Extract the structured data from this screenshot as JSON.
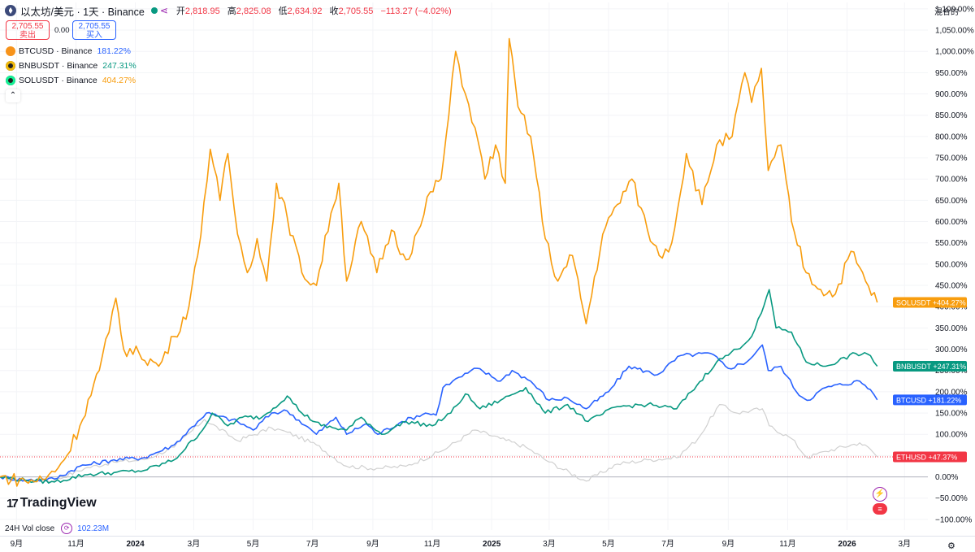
{
  "header": {
    "title": "以太坊/美元 · 1天 · Binance",
    "open_label": "开",
    "open_value": "2,818.95",
    "high_label": "高",
    "high_value": "2,825.08",
    "low_label": "低",
    "low_value": "2,634.92",
    "close_label": "收",
    "close_value": "2,705.55",
    "change": "−113.27 (−4.02%)"
  },
  "trade": {
    "sell_price": "2,705.55",
    "sell_label": "卖出",
    "spread": "0.00",
    "buy_price": "2,705.55",
    "buy_label": "买入"
  },
  "legend": [
    {
      "label": "BTCUSD · Binance",
      "value": "181.22%",
      "color": "#2962ff",
      "coin_color": "#f7931a"
    },
    {
      "label": "BNBUSDT · Binance",
      "value": "247.31%",
      "color": "#089981",
      "coin_color": "#222222"
    },
    {
      "label": "SOLUSDT · Binance",
      "value": "404.27%",
      "color": "#f89d0e",
      "coin_color": "#222222"
    }
  ],
  "scale_mode": "混合的",
  "brand": "TradingView",
  "volume": {
    "label": "24H Vol close",
    "value": "102.23M"
  },
  "chart_data": {
    "type": "line",
    "yunit": "percent",
    "ylim": [
      -125,
      1115
    ],
    "xlim": [
      "2023-08-15",
      "2026-03-25"
    ],
    "yticks": [
      "1,100.00%",
      "1,050.00%",
      "1,000.00%",
      "950.00%",
      "900.00%",
      "850.00%",
      "800.00%",
      "750.00%",
      "700.00%",
      "650.00%",
      "600.00%",
      "550.00%",
      "500.00%",
      "450.00%",
      "400.00%",
      "350.00%",
      "300.00%",
      "250.00%",
      "200.00%",
      "150.00%",
      "100.00%",
      "50.00%",
      "0.00%",
      "−50.00%",
      "−100.00%"
    ],
    "ytick_values": [
      1100,
      1050,
      1000,
      950,
      900,
      850,
      800,
      750,
      700,
      650,
      600,
      550,
      500,
      450,
      400,
      350,
      300,
      250,
      200,
      150,
      100,
      50,
      0,
      -50,
      -100
    ],
    "xticks": [
      {
        "date": "2023-09-01",
        "label": "9月",
        "bold": false
      },
      {
        "date": "2023-11-01",
        "label": "11月",
        "bold": false
      },
      {
        "date": "2024-01-01",
        "label": "2024",
        "bold": true
      },
      {
        "date": "2024-03-01",
        "label": "3月",
        "bold": false
      },
      {
        "date": "2024-05-01",
        "label": "5月",
        "bold": false
      },
      {
        "date": "2024-07-01",
        "label": "7月",
        "bold": false
      },
      {
        "date": "2024-09-01",
        "label": "9月",
        "bold": false
      },
      {
        "date": "2024-11-01",
        "label": "11月",
        "bold": false
      },
      {
        "date": "2025-01-01",
        "label": "2025",
        "bold": true
      },
      {
        "date": "2025-03-01",
        "label": "3月",
        "bold": false
      },
      {
        "date": "2025-05-01",
        "label": "5月",
        "bold": false
      },
      {
        "date": "2025-07-01",
        "label": "7月",
        "bold": false
      },
      {
        "date": "2025-09-01",
        "label": "9月",
        "bold": false
      },
      {
        "date": "2025-11-01",
        "label": "11月",
        "bold": false
      },
      {
        "date": "2026-01-01",
        "label": "2026",
        "bold": true
      },
      {
        "date": "2026-03-01",
        "label": "3月",
        "bold": false
      }
    ],
    "series": [
      {
        "name": "SOLUSDT",
        "color": "#f89d0e",
        "end_label": "SOLUSDT",
        "end_value": "+404.27%",
        "points": [
          [
            "2023-08-15",
            0
          ],
          [
            "2023-09-10",
            -10
          ],
          [
            "2023-10-01",
            -5
          ],
          [
            "2023-10-20",
            40
          ],
          [
            "2023-11-05",
            120
          ],
          [
            "2023-11-25",
            250
          ],
          [
            "2023-12-05",
            340
          ],
          [
            "2023-12-12",
            420
          ],
          [
            "2023-12-20",
            300
          ],
          [
            "2024-01-05",
            290
          ],
          [
            "2024-01-25",
            260
          ],
          [
            "2024-02-10",
            330
          ],
          [
            "2024-02-25",
            400
          ],
          [
            "2024-03-05",
            520
          ],
          [
            "2024-03-18",
            770
          ],
          [
            "2024-03-28",
            650
          ],
          [
            "2024-04-05",
            760
          ],
          [
            "2024-04-15",
            570
          ],
          [
            "2024-04-25",
            480
          ],
          [
            "2024-05-05",
            560
          ],
          [
            "2024-05-15",
            460
          ],
          [
            "2024-05-25",
            690
          ],
          [
            "2024-06-05",
            610
          ],
          [
            "2024-06-20",
            480
          ],
          [
            "2024-07-05",
            450
          ],
          [
            "2024-07-20",
            620
          ],
          [
            "2024-07-28",
            690
          ],
          [
            "2024-08-05",
            460
          ],
          [
            "2024-08-20",
            600
          ],
          [
            "2024-09-05",
            480
          ],
          [
            "2024-09-20",
            580
          ],
          [
            "2024-10-05",
            510
          ],
          [
            "2024-10-20",
            590
          ],
          [
            "2024-10-30",
            670
          ],
          [
            "2024-11-10",
            700
          ],
          [
            "2024-11-18",
            850
          ],
          [
            "2024-11-25",
            1000
          ],
          [
            "2024-12-05",
            900
          ],
          [
            "2024-12-15",
            820
          ],
          [
            "2024-12-25",
            700
          ],
          [
            "2025-01-05",
            780
          ],
          [
            "2025-01-15",
            690
          ],
          [
            "2025-01-19",
            1030
          ],
          [
            "2025-01-28",
            870
          ],
          [
            "2025-02-10",
            800
          ],
          [
            "2025-02-25",
            560
          ],
          [
            "2025-03-10",
            460
          ],
          [
            "2025-03-25",
            520
          ],
          [
            "2025-04-08",
            360
          ],
          [
            "2025-04-25",
            570
          ],
          [
            "2025-05-10",
            640
          ],
          [
            "2025-05-25",
            700
          ],
          [
            "2025-06-10",
            580
          ],
          [
            "2025-06-22",
            520
          ],
          [
            "2025-07-05",
            550
          ],
          [
            "2025-07-20",
            760
          ],
          [
            "2025-08-05",
            640
          ],
          [
            "2025-08-20",
            780
          ],
          [
            "2025-09-05",
            800
          ],
          [
            "2025-09-18",
            950
          ],
          [
            "2025-09-25",
            880
          ],
          [
            "2025-10-05",
            960
          ],
          [
            "2025-10-12",
            720
          ],
          [
            "2025-10-25",
            780
          ],
          [
            "2025-11-05",
            600
          ],
          [
            "2025-11-20",
            480
          ],
          [
            "2025-12-05",
            440
          ],
          [
            "2025-12-20",
            430
          ],
          [
            "2026-01-05",
            530
          ],
          [
            "2026-01-20",
            460
          ],
          [
            "2026-02-01",
            410
          ]
        ]
      },
      {
        "name": "BNBUSDT",
        "color": "#089981",
        "end_label": "BNBUSDT",
        "end_value": "+247.31%",
        "points": [
          [
            "2023-08-15",
            0
          ],
          [
            "2023-09-10",
            -8
          ],
          [
            "2023-10-10",
            -12
          ],
          [
            "2023-11-10",
            5
          ],
          [
            "2023-12-10",
            10
          ],
          [
            "2024-01-10",
            15
          ],
          [
            "2024-02-10",
            40
          ],
          [
            "2024-03-10",
            110
          ],
          [
            "2024-03-20",
            150
          ],
          [
            "2024-04-05",
            120
          ],
          [
            "2024-04-20",
            140
          ],
          [
            "2024-05-10",
            140
          ],
          [
            "2024-06-05",
            190
          ],
          [
            "2024-06-20",
            150
          ],
          [
            "2024-07-10",
            120
          ],
          [
            "2024-08-05",
            110
          ],
          [
            "2024-08-20",
            140
          ],
          [
            "2024-09-10",
            100
          ],
          [
            "2024-10-05",
            130
          ],
          [
            "2024-11-01",
            120
          ],
          [
            "2024-11-20",
            150
          ],
          [
            "2024-12-05",
            195
          ],
          [
            "2024-12-20",
            160
          ],
          [
            "2025-01-10",
            180
          ],
          [
            "2025-02-05",
            210
          ],
          [
            "2025-02-25",
            150
          ],
          [
            "2025-03-20",
            170
          ],
          [
            "2025-04-10",
            130
          ],
          [
            "2025-05-10",
            165
          ],
          [
            "2025-06-10",
            170
          ],
          [
            "2025-07-10",
            160
          ],
          [
            "2025-07-25",
            200
          ],
          [
            "2025-08-20",
            270
          ],
          [
            "2025-09-10",
            300
          ],
          [
            "2025-09-25",
            330
          ],
          [
            "2025-10-05",
            385
          ],
          [
            "2025-10-13",
            440
          ],
          [
            "2025-10-20",
            350
          ],
          [
            "2025-11-05",
            340
          ],
          [
            "2025-11-20",
            270
          ],
          [
            "2025-12-10",
            260
          ],
          [
            "2026-01-10",
            290
          ],
          [
            "2026-01-25",
            285
          ],
          [
            "2026-02-01",
            260
          ]
        ]
      },
      {
        "name": "BTCUSD",
        "color": "#2962ff",
        "end_label": "BTCUSD",
        "end_value": "+181.22%",
        "points": [
          [
            "2023-08-15",
            0
          ],
          [
            "2023-09-10",
            -8
          ],
          [
            "2023-10-10",
            -5
          ],
          [
            "2023-11-05",
            25
          ],
          [
            "2023-12-10",
            40
          ],
          [
            "2024-01-10",
            45
          ],
          [
            "2024-02-10",
            75
          ],
          [
            "2024-03-05",
            130
          ],
          [
            "2024-03-14",
            150
          ],
          [
            "2024-04-15",
            130
          ],
          [
            "2024-05-01",
            110
          ],
          [
            "2024-05-20",
            150
          ],
          [
            "2024-06-05",
            155
          ],
          [
            "2024-07-05",
            100
          ],
          [
            "2024-07-25",
            140
          ],
          [
            "2024-08-05",
            100
          ],
          [
            "2024-08-25",
            125
          ],
          [
            "2024-09-06",
            100
          ],
          [
            "2024-10-01",
            130
          ],
          [
            "2024-10-25",
            150
          ],
          [
            "2024-11-05",
            145
          ],
          [
            "2024-11-12",
            210
          ],
          [
            "2024-11-22",
            225
          ],
          [
            "2024-12-17",
            255
          ],
          [
            "2025-01-10",
            225
          ],
          [
            "2025-01-22",
            250
          ],
          [
            "2025-02-10",
            225
          ],
          [
            "2025-03-01",
            180
          ],
          [
            "2025-03-20",
            185
          ],
          [
            "2025-04-08",
            160
          ],
          [
            "2025-05-01",
            200
          ],
          [
            "2025-05-22",
            260
          ],
          [
            "2025-06-20",
            240
          ],
          [
            "2025-07-14",
            285
          ],
          [
            "2025-08-14",
            290
          ],
          [
            "2025-09-01",
            255
          ],
          [
            "2025-09-20",
            270
          ],
          [
            "2025-10-06",
            310
          ],
          [
            "2025-10-12",
            250
          ],
          [
            "2025-10-25",
            260
          ],
          [
            "2025-11-10",
            200
          ],
          [
            "2025-11-21",
            180
          ],
          [
            "2025-12-10",
            210
          ],
          [
            "2026-01-14",
            225
          ],
          [
            "2026-01-25",
            205
          ],
          [
            "2026-02-01",
            181
          ]
        ]
      },
      {
        "name": "ETHUSD",
        "color": "#d0d0d0",
        "end_label": "ETHUSD",
        "end_value": "+47.37%",
        "points": [
          [
            "2023-08-15",
            0
          ],
          [
            "2023-09-10",
            -10
          ],
          [
            "2023-10-10",
            -8
          ],
          [
            "2023-11-10",
            20
          ],
          [
            "2023-12-10",
            35
          ],
          [
            "2024-01-10",
            40
          ],
          [
            "2024-02-10",
            70
          ],
          [
            "2024-03-12",
            135
          ],
          [
            "2024-04-15",
            85
          ],
          [
            "2024-05-20",
            115
          ],
          [
            "2024-06-05",
            105
          ],
          [
            "2024-07-05",
            75
          ],
          [
            "2024-08-05",
            25
          ],
          [
            "2024-09-05",
            20
          ],
          [
            "2024-10-05",
            25
          ],
          [
            "2024-11-10",
            60
          ],
          [
            "2024-12-15",
            110
          ],
          [
            "2025-01-10",
            90
          ],
          [
            "2025-02-05",
            70
          ],
          [
            "2025-03-01",
            35
          ],
          [
            "2025-04-08",
            -10
          ],
          [
            "2025-05-10",
            30
          ],
          [
            "2025-06-10",
            40
          ],
          [
            "2025-07-10",
            45
          ],
          [
            "2025-08-01",
            90
          ],
          [
            "2025-08-23",
            170
          ],
          [
            "2025-09-10",
            150
          ],
          [
            "2025-10-06",
            160
          ],
          [
            "2025-10-13",
            120
          ],
          [
            "2025-11-05",
            90
          ],
          [
            "2025-11-21",
            45
          ],
          [
            "2025-12-10",
            60
          ],
          [
            "2026-01-14",
            80
          ],
          [
            "2026-01-25",
            65
          ],
          [
            "2026-02-01",
            47
          ]
        ]
      }
    ]
  }
}
